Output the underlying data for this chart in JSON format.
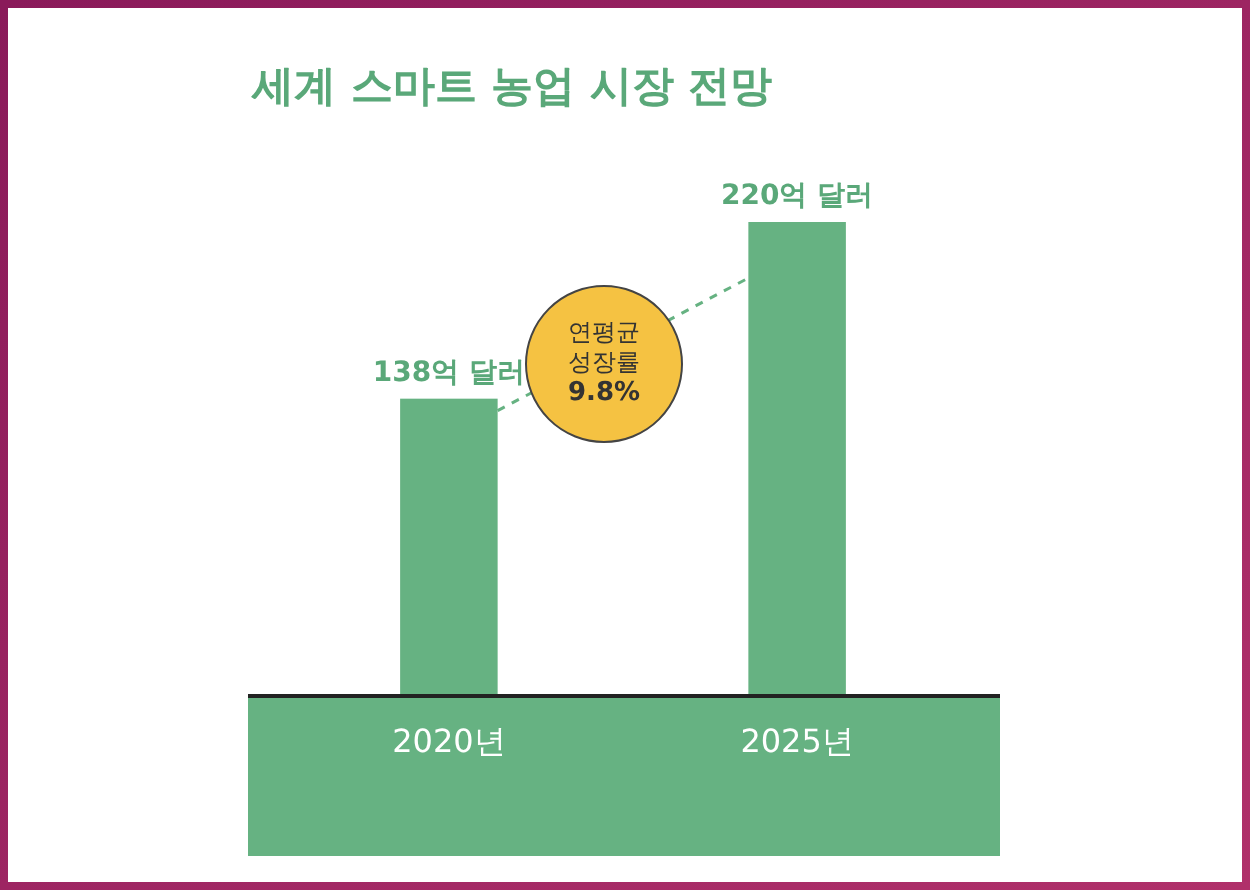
{
  "chart_data": {
    "type": "bar",
    "title": "세계 스마트 농업 시장 전망",
    "categories": [
      "2020년",
      "2025년"
    ],
    "values": [
      138,
      220
    ],
    "value_labels": [
      "138억 달러",
      "220억 달러"
    ],
    "color": "#66b282",
    "annotations": [
      "연평균\n성장률\n9.8%"
    ]
  }
}
